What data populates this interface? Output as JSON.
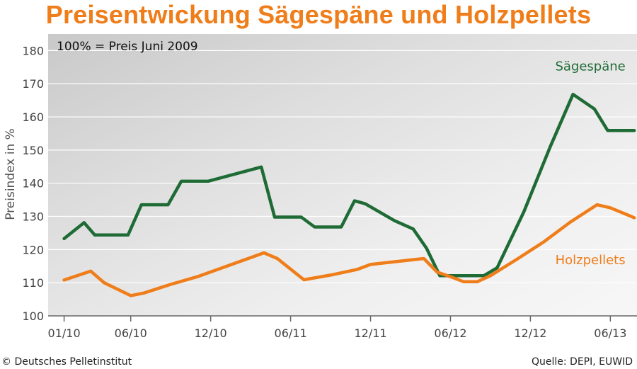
{
  "chart_data": {
    "type": "line",
    "title": "Preisentwickung Sägespäne und Holzpellets",
    "note": "100% = Preis Juni 2009",
    "ylabel": "Preisindex in %",
    "xlabel": "",
    "ylim": [
      100,
      185
    ],
    "yticks": [
      100,
      110,
      120,
      130,
      140,
      150,
      160,
      170,
      180
    ],
    "x_tick_labels": [
      "01/10",
      "06/10",
      "12/10",
      "06/11",
      "12/11",
      "06/12",
      "12/12",
      "06/13"
    ],
    "x_tick_months": [
      0,
      5,
      11,
      17,
      23,
      29,
      35,
      41
    ],
    "xlim_months": [
      -1.2,
      43
    ],
    "grid": "horizontal",
    "background": "gradient grey",
    "series": [
      {
        "name": "Sägespäne",
        "color": "#1e6b35",
        "label_at_month": 39.5,
        "label_at_value": 174,
        "points": [
          [
            0,
            123.3
          ],
          [
            1.5,
            128.1
          ],
          [
            2.3,
            124.4
          ],
          [
            4.8,
            124.4
          ],
          [
            5.8,
            133.5
          ],
          [
            7.8,
            133.5
          ],
          [
            8.8,
            140.6
          ],
          [
            10.8,
            140.6
          ],
          [
            14.8,
            144.9
          ],
          [
            15.8,
            129.8
          ],
          [
            17.8,
            129.8
          ],
          [
            18.8,
            126.8
          ],
          [
            20.8,
            126.8
          ],
          [
            21.8,
            134.7
          ],
          [
            22.6,
            133.8
          ],
          [
            24.8,
            128.7
          ],
          [
            26.2,
            126.2
          ],
          [
            27.2,
            120.4
          ],
          [
            28.2,
            112.1
          ],
          [
            31.5,
            112.1
          ],
          [
            32.5,
            114.5
          ],
          [
            34.5,
            131.3
          ],
          [
            36.5,
            151.1
          ],
          [
            38.2,
            166.8
          ],
          [
            39.8,
            162.4
          ],
          [
            40.8,
            155.9
          ],
          [
            42.8,
            155.9
          ]
        ]
      },
      {
        "name": "Holzpellets",
        "color": "#ef7d1a",
        "label_at_month": 39.5,
        "label_at_value": 115.6,
        "points": [
          [
            0,
            110.8
          ],
          [
            2,
            113.5
          ],
          [
            3,
            110
          ],
          [
            5,
            106.1
          ],
          [
            6,
            106.9
          ],
          [
            8,
            109.5
          ],
          [
            10,
            111.8
          ],
          [
            12,
            114.7
          ],
          [
            15,
            119
          ],
          [
            16,
            117.3
          ],
          [
            18,
            110.9
          ],
          [
            20,
            112.3
          ],
          [
            22,
            114
          ],
          [
            23,
            115.5
          ],
          [
            27,
            117.3
          ],
          [
            28,
            113.2
          ],
          [
            29,
            111.8
          ],
          [
            30,
            110.3
          ],
          [
            31,
            110.3
          ],
          [
            32,
            112.1
          ],
          [
            34,
            117.1
          ],
          [
            36,
            122.3
          ],
          [
            38,
            128.3
          ],
          [
            40,
            133.5
          ],
          [
            41,
            132.6
          ],
          [
            42.8,
            129.6
          ]
        ]
      }
    ]
  },
  "footer": {
    "copyright": "© Deutsches Pelletinstitut",
    "source": "Quelle: DEPI, EUWID"
  }
}
